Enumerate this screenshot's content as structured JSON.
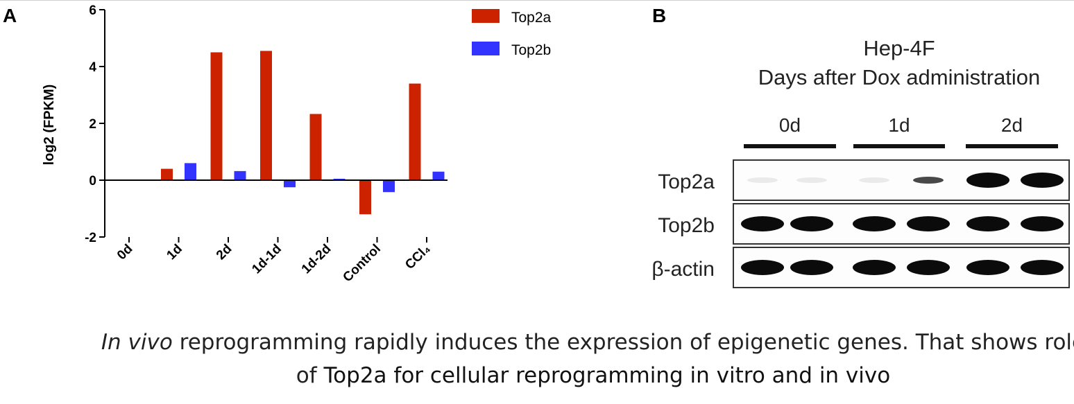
{
  "panels": {
    "a_label": "A",
    "b_label": "B"
  },
  "chart_data": {
    "type": "bar",
    "categories": [
      "0d",
      "1d",
      "2d",
      "1d-1d",
      "1d-2d",
      "Control",
      "CCl₄"
    ],
    "series": [
      {
        "name": "Top2a",
        "color": "#cc2200",
        "values": [
          0,
          0.4,
          4.5,
          4.55,
          2.33,
          -1.2,
          3.4
        ]
      },
      {
        "name": "Top2b",
        "color": "#3333ff",
        "values": [
          0,
          0.6,
          0.32,
          -0.25,
          0.05,
          -0.42,
          0.3
        ]
      }
    ],
    "title": "",
    "xlabel": "",
    "ylabel": "log2 (FPKM)",
    "ylim": [
      -2,
      6
    ],
    "yticks": [
      -2,
      0,
      2,
      4,
      6
    ],
    "legend": "top-right",
    "grid": false
  },
  "blot": {
    "title_line1": "Hep-4F",
    "title_line2": "Days after Dox administration",
    "groups": [
      "0d",
      "1d",
      "2d"
    ],
    "rows": [
      {
        "label": "Top2a",
        "intensities": [
          0.03,
          0.03,
          0.04,
          0.45,
          1.0,
          1.0
        ]
      },
      {
        "label": "Top2b",
        "intensities": [
          1,
          1,
          1,
          1,
          1,
          1
        ]
      },
      {
        "label": "β-actin",
        "intensities": [
          1,
          1,
          1,
          1,
          1,
          1
        ]
      }
    ]
  },
  "caption": {
    "italic": "In vivo",
    "rest": " reprogramming rapidly induces the expression of epigenetic genes. That shows role of ",
    "emphasis": "Top2a for cellular reprogramming in vitro and in vivo"
  }
}
